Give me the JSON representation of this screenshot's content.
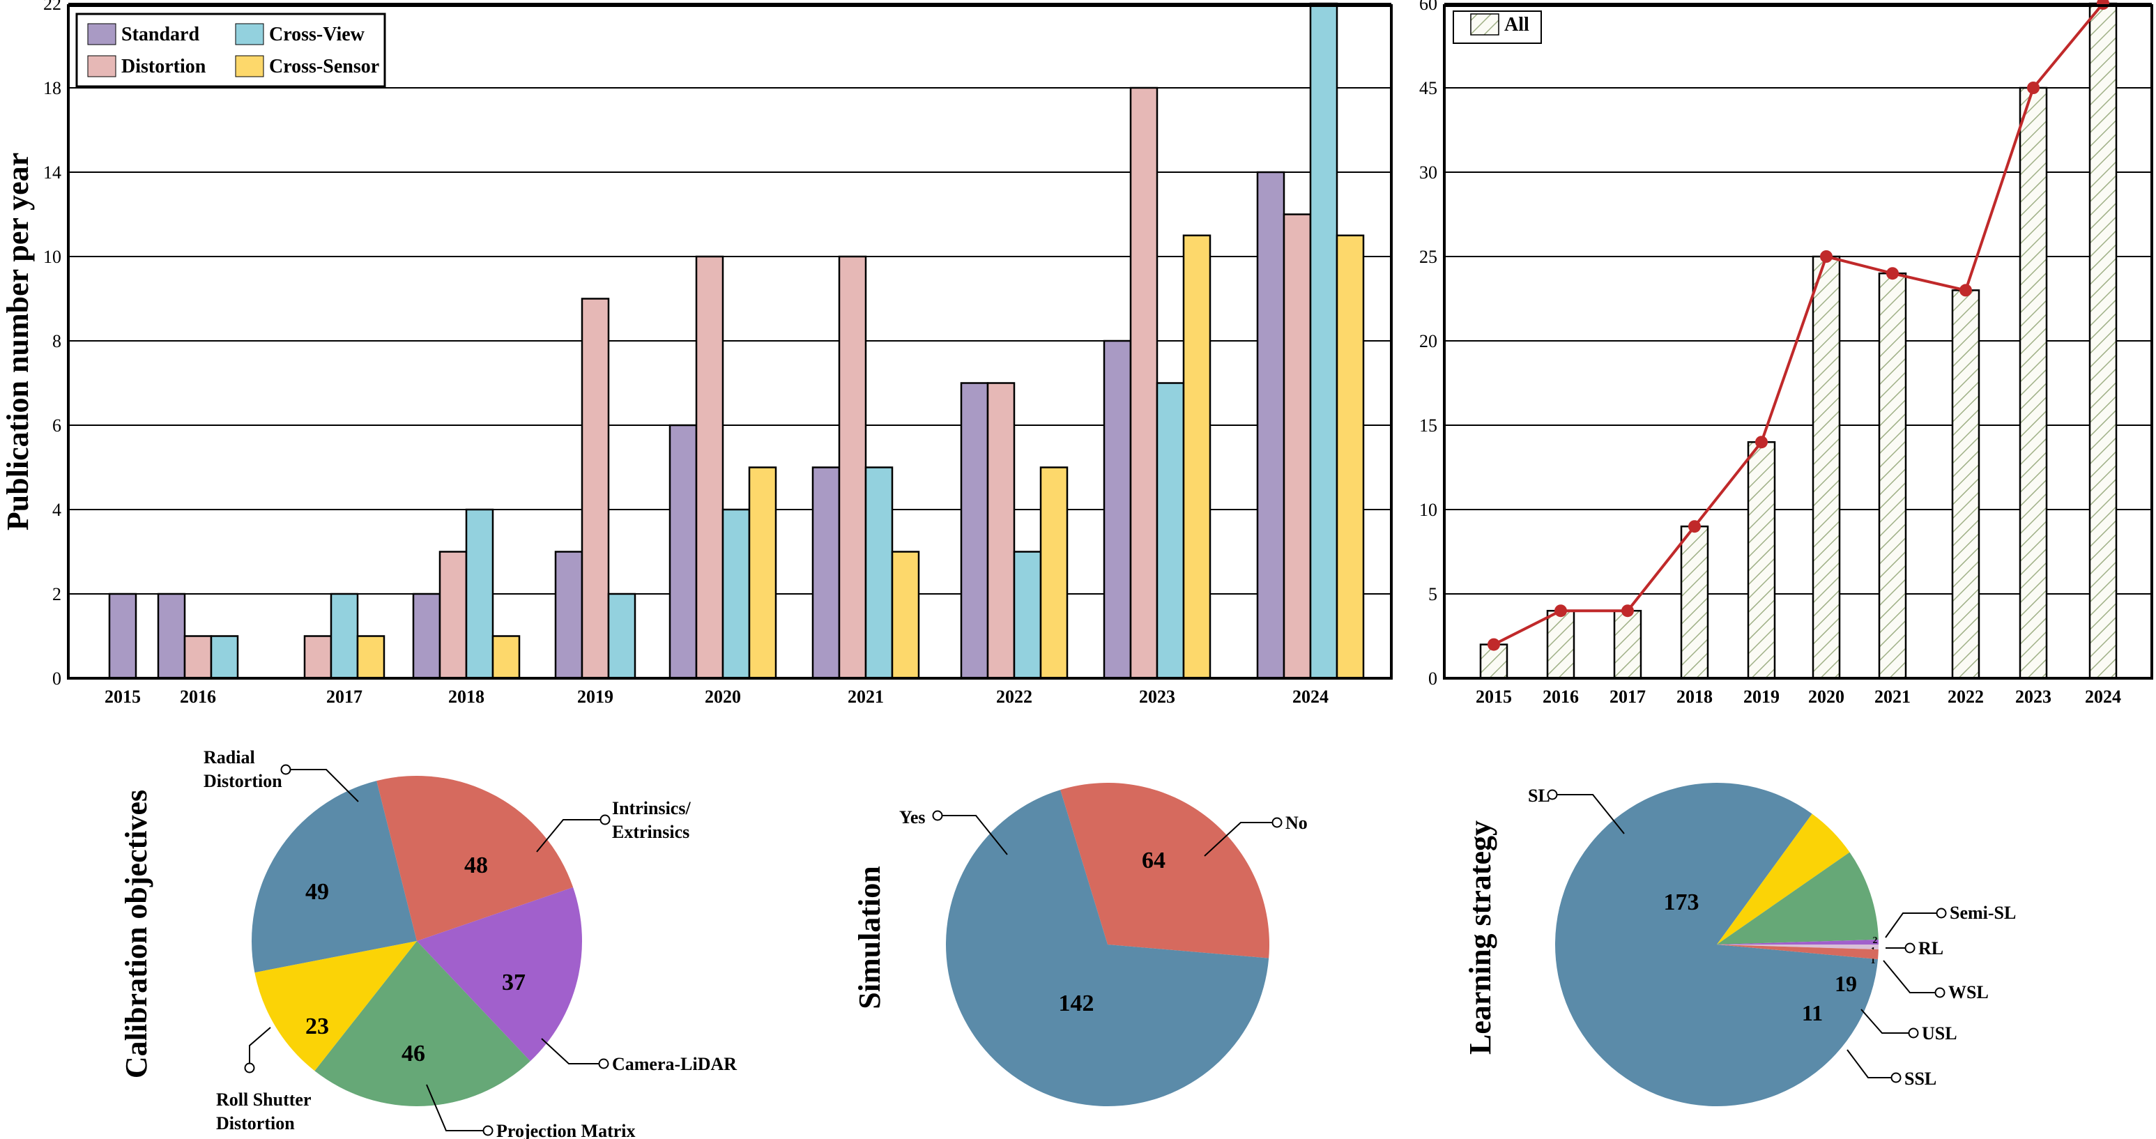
{
  "chart_data": [
    {
      "type": "bar",
      "title": "",
      "ylabel": "Publication number per year",
      "xlabel": "",
      "categories": [
        "2015",
        "2016",
        "2017",
        "2018",
        "2019",
        "2020",
        "2021",
        "2022",
        "2023",
        "2024"
      ],
      "yticks": [
        "0",
        "2",
        "4",
        "6",
        "8",
        "10",
        "14",
        "18",
        "22"
      ],
      "series": [
        {
          "name": "Standard",
          "color": "#a99ac4",
          "values": [
            2,
            2,
            0,
            2,
            3,
            6,
            5,
            7,
            8,
            14
          ]
        },
        {
          "name": "Distortion",
          "color": "#e6b8b6",
          "values": [
            0,
            1,
            1,
            3,
            9,
            10,
            10,
            7,
            18,
            12
          ]
        },
        {
          "name": "Cross-View",
          "color": "#93d1de",
          "values": [
            0,
            1,
            2,
            4,
            2,
            4,
            5,
            3,
            7,
            23
          ]
        },
        {
          "name": "Cross-Sensor",
          "color": "#fdd86b",
          "values": [
            0,
            0,
            1,
            1,
            0,
            5,
            3,
            5,
            11,
            11
          ]
        }
      ],
      "legend": "top-left",
      "grid": "horizontal"
    },
    {
      "type": "bar+line",
      "title": "",
      "categories": [
        "2015",
        "2016",
        "2017",
        "2018",
        "2019",
        "2020",
        "2021",
        "2022",
        "2023",
        "2024"
      ],
      "yticks": [
        "0",
        "5",
        "10",
        "15",
        "20",
        "25",
        "30",
        "45",
        "60"
      ],
      "series": [
        {
          "name": "All",
          "values": [
            2,
            4,
            4,
            9,
            14,
            25,
            24,
            23,
            45,
            60
          ],
          "style": "hatched",
          "line_color": "#c0292a"
        }
      ],
      "legend": "top-left",
      "grid": "horizontal"
    },
    {
      "type": "pie",
      "ylabel": "Calibration objectives",
      "slices": [
        {
          "label": "Radial Distortion",
          "display": [
            "Radial",
            "Distortion"
          ],
          "value": 49,
          "color": "#5b8ba9"
        },
        {
          "label": "Intrinsics/Extrinsics",
          "display": [
            "Intrinsics/",
            "Extrinsics"
          ],
          "value": 48,
          "color": "#d66a5e"
        },
        {
          "label": "Camera-LiDAR",
          "display": [
            "Camera-LiDAR"
          ],
          "value": 37,
          "color": "#a160cc"
        },
        {
          "label": "Projection Matrix",
          "display": [
            "Projection Matrix"
          ],
          "value": 46,
          "color": "#66a877"
        },
        {
          "label": "Roll Shutter Distortion",
          "display": [
            "Roll Shutter",
            "Distortion"
          ],
          "value": 23,
          "color": "#fbd306"
        }
      ]
    },
    {
      "type": "pie",
      "ylabel": "Simulation",
      "slices": [
        {
          "label": "No",
          "display": [
            "No"
          ],
          "value": 64,
          "color": "#d66a5e"
        },
        {
          "label": "Yes",
          "display": [
            "Yes"
          ],
          "value": 142,
          "color": "#5b8ba9"
        }
      ]
    },
    {
      "type": "pie",
      "ylabel": "Learning strategy",
      "slices": [
        {
          "label": "SL",
          "display": [
            "SL"
          ],
          "value": 173,
          "color": "#5b8ba9"
        },
        {
          "label": "SSL",
          "display": [
            "SSL"
          ],
          "value": 11,
          "color": "#fbd306"
        },
        {
          "label": "USL",
          "display": [
            "USL"
          ],
          "value": 19,
          "color": "#66a877"
        },
        {
          "label": "WSL",
          "display": [
            "WSL"
          ],
          "value": 1,
          "color": "#a160cc"
        },
        {
          "label": "RL",
          "display": [
            "RL"
          ],
          "value": 1,
          "color": "#d8bfd8"
        },
        {
          "label": "Semi-SL",
          "display": [
            "Semi-SL"
          ],
          "value": 2,
          "color": "#d66a5e"
        }
      ]
    }
  ]
}
